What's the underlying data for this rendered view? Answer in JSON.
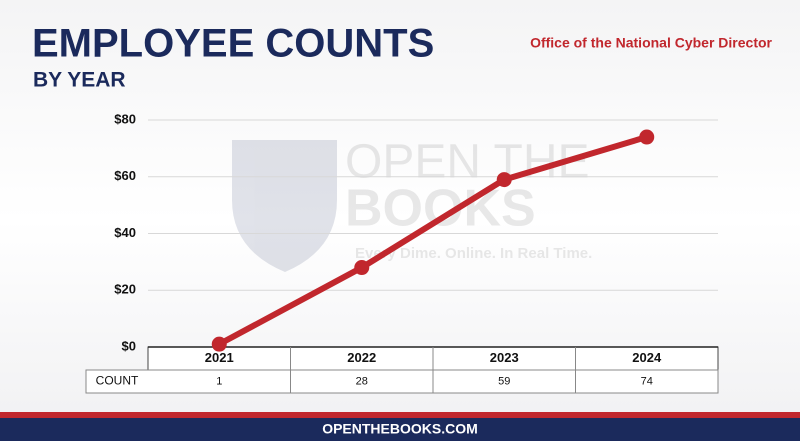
{
  "chart_data": {
    "type": "line",
    "title": "EMPLOYEE COUNTS",
    "subtitle": "BY YEAR",
    "annotation": "Office of the National Cyber Director",
    "watermark": [
      "OPEN THE",
      "BOOKS",
      "Every Dime. Online. In Real Time."
    ],
    "footer": "OPENTHEBOOKS.COM",
    "categories": [
      "2021",
      "2022",
      "2023",
      "2024"
    ],
    "series": [
      {
        "name": "COUNT",
        "color": "#c1272d",
        "values": [
          1,
          28,
          59,
          74
        ]
      }
    ],
    "ylim": [
      0,
      80
    ],
    "yticks": [
      {
        "value": 0,
        "label": "$0"
      },
      {
        "value": 20,
        "label": "$20"
      },
      {
        "value": 40,
        "label": "$40"
      },
      {
        "value": 60,
        "label": "$60"
      },
      {
        "value": 80,
        "label": "$80"
      }
    ],
    "grid": true
  }
}
